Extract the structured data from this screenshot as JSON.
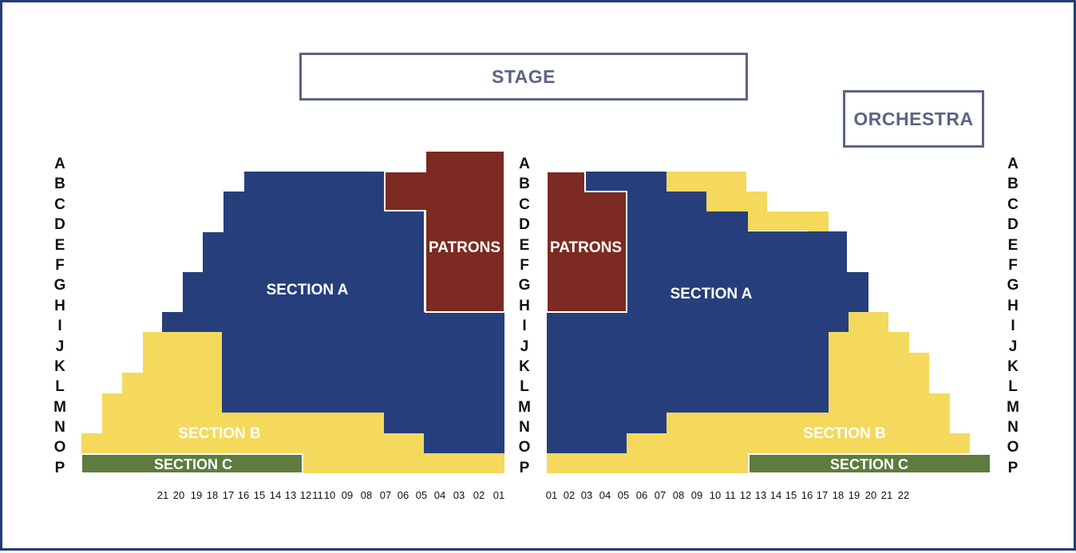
{
  "stage": {
    "label": "STAGE"
  },
  "orchestra": {
    "label": "ORCHESTRA"
  },
  "rows": [
    "A",
    "B",
    "C",
    "D",
    "E",
    "F",
    "G",
    "H",
    "I",
    "J",
    "K",
    "L",
    "M",
    "N",
    "O",
    "P"
  ],
  "sections": {
    "section_a": "SECTION A",
    "section_b": "SECTION B",
    "section_c": "SECTION C",
    "patrons": "PATRONS"
  },
  "colors": {
    "section_a": "#263f7c",
    "section_b": "#f4d95c",
    "section_c": "#5d7c3e",
    "patrons": "#7c2a22",
    "label_box": "#5b6482",
    "frame": "#233b74"
  },
  "left_seat_numbers": [
    "21",
    "20",
    "19",
    "18",
    "17",
    "16",
    "15",
    "14",
    "13",
    "12",
    "11",
    "10",
    "09",
    "08",
    "07",
    "06",
    "05",
    "04",
    "03",
    "02",
    "01"
  ],
  "right_seat_numbers": [
    "01",
    "02",
    "03",
    "04",
    "05",
    "06",
    "07",
    "08",
    "09",
    "10",
    "11",
    "12",
    "13",
    "14",
    "15",
    "16",
    "17",
    "18",
    "19",
    "20",
    "21",
    "22"
  ]
}
